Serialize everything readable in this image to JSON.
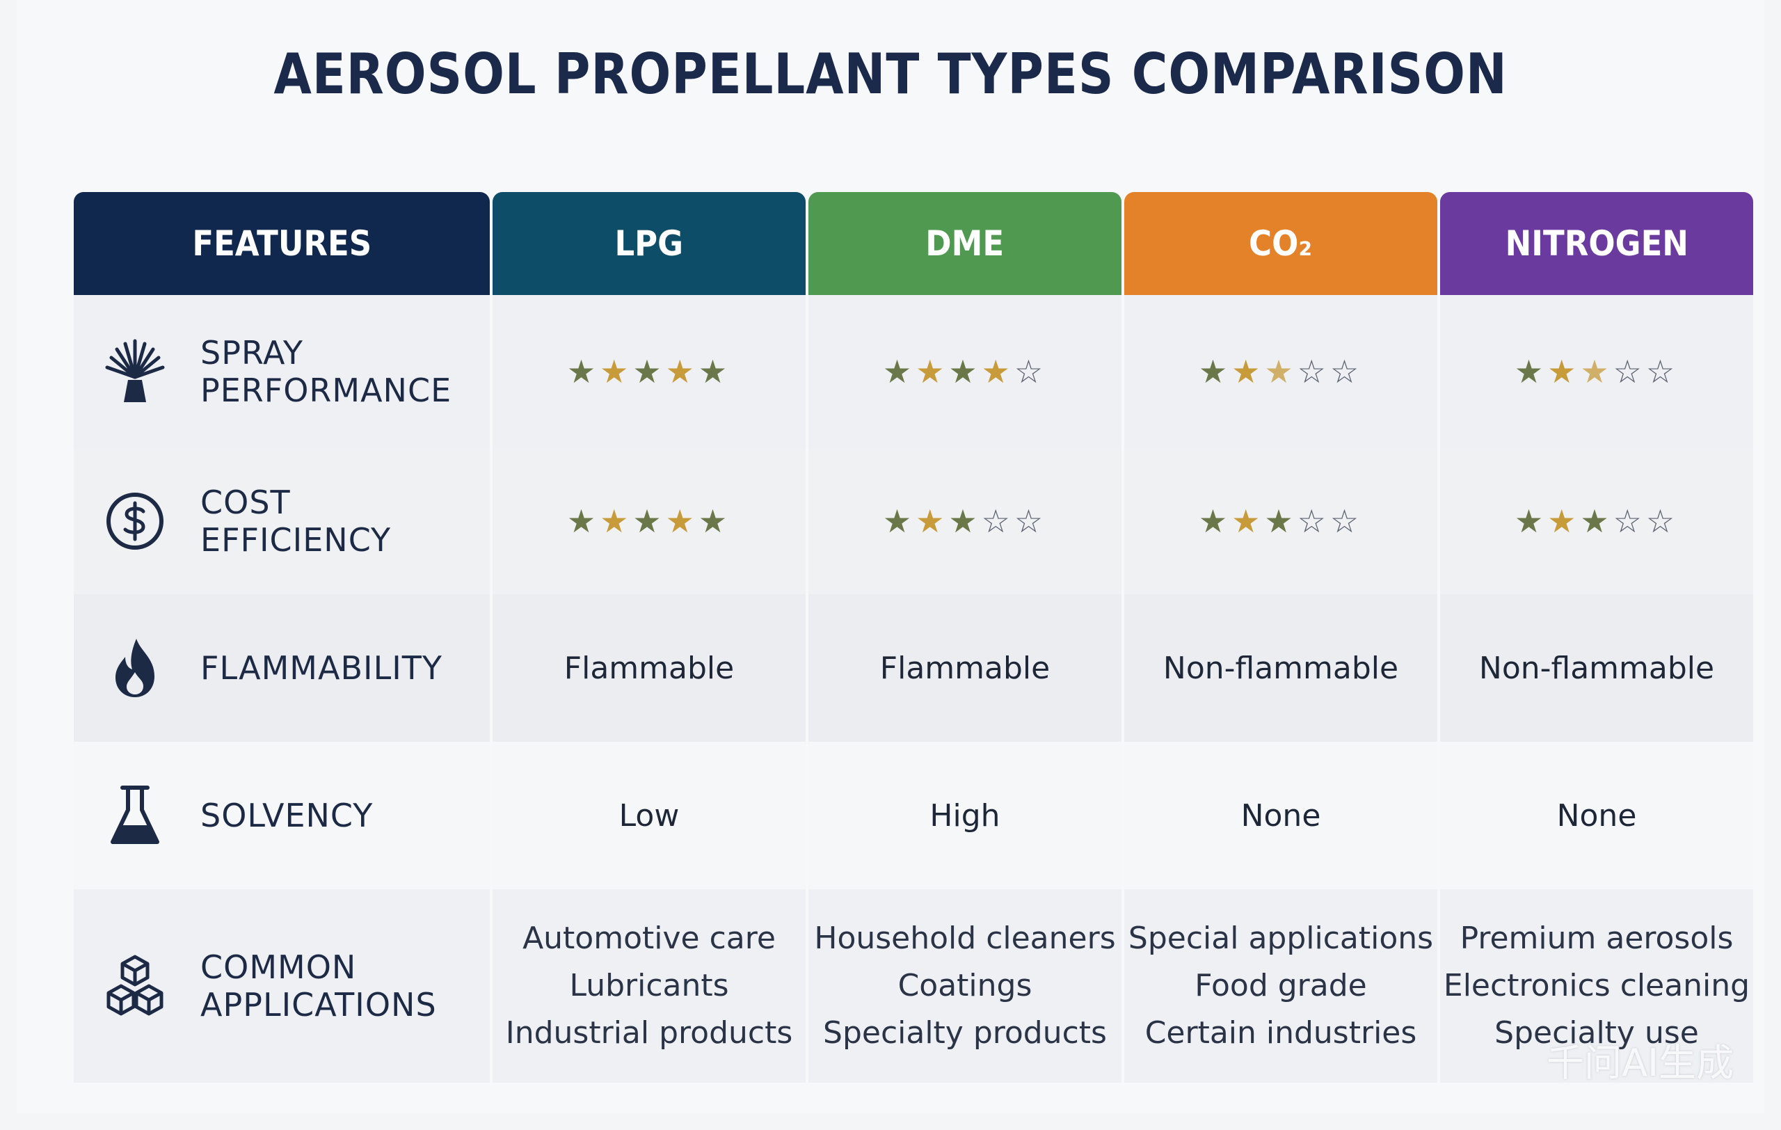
{
  "title": "AEROSOL PROPELLANT TYPES COMPARISON",
  "headers": {
    "features": "FEATURES",
    "lpg": "LPG",
    "dme": "DME",
    "co2": "CO₂",
    "nitrogen": "NITROGEN"
  },
  "colors": {
    "features": "#10284d",
    "lpg": "#0e4d68",
    "dme": "#4f9a50",
    "co2": "#e4822a",
    "nitrogen": "#6a3a9e"
  },
  "rows": {
    "spray": {
      "label_line1": "SPRAY",
      "label_line2": "PERFORMANCE",
      "icon": "spray-nozzle-icon",
      "ratings": {
        "lpg": 5,
        "dme": 4,
        "co2": 2.5,
        "nitrogen": 2.5
      },
      "max": 5
    },
    "cost": {
      "label": "COST EFFICIENCY",
      "icon": "dollar-coin-icon",
      "ratings": {
        "lpg": 5,
        "dme": 3,
        "co2": 3,
        "nitrogen": 3
      },
      "max": 5
    },
    "flammability": {
      "label": "FLAMMABILITY",
      "icon": "flame-icon",
      "lpg": "Flammable",
      "dme": "Flammable",
      "co2": "Non-flammable",
      "nitrogen": "Non-flammable"
    },
    "solvency": {
      "label": "SOLVENCY",
      "icon": "flask-icon",
      "lpg": "Low",
      "dme": "High",
      "co2": "None",
      "nitrogen": "None"
    },
    "applications": {
      "label_line1": "COMMON",
      "label_line2": "APPLICATIONS",
      "icon": "cubes-icon",
      "lpg": [
        "Automotive care",
        "Lubricants",
        "Industrial products"
      ],
      "dme": [
        "Household cleaners",
        "Coatings",
        "Specialty products"
      ],
      "co2": [
        "Special applications",
        "Food grade",
        "Certain industries"
      ],
      "nitrogen": [
        "Premium aerosols",
        "Electronics cleaning",
        "Specialty use"
      ]
    }
  },
  "watermark": "千问AI生成"
}
